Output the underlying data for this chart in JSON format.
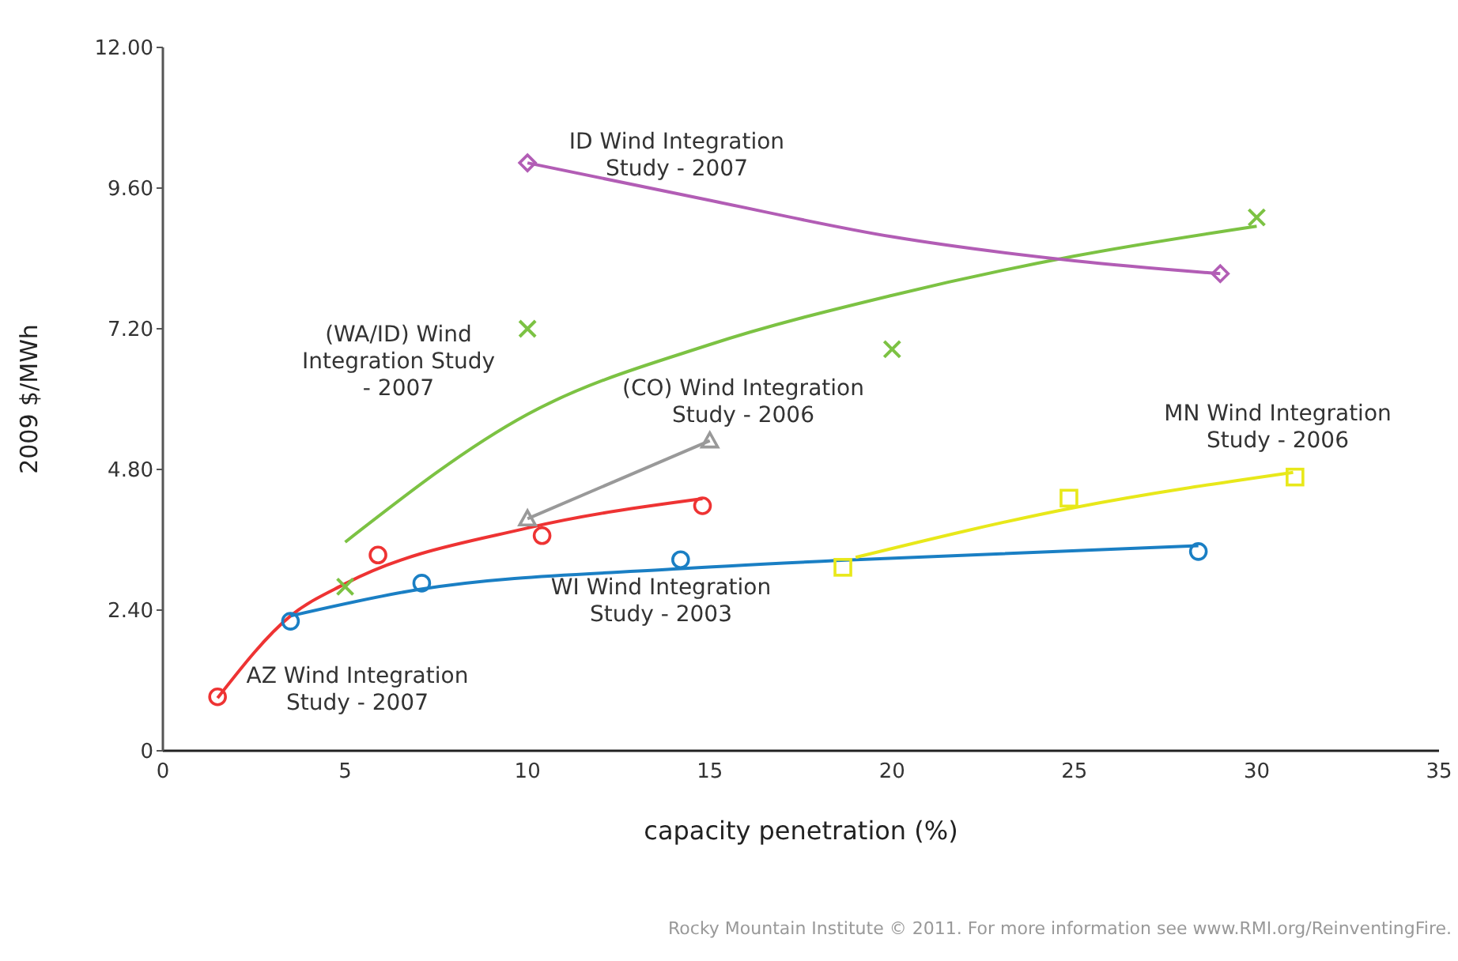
{
  "chart_data": {
    "type": "scatter",
    "xlabel": "capacity penetration (%)",
    "ylabel": "2009 $/MWh",
    "xlim": [
      0,
      35
    ],
    "xticks": [
      0,
      5,
      10,
      15,
      20,
      25,
      30,
      35
    ],
    "ylim": [
      0,
      12
    ],
    "yticks": [
      0,
      {
        "value": 2.4,
        "label": "2.40"
      },
      {
        "value": 4.8,
        "label": "4.80"
      },
      {
        "value": 7.2,
        "label": "7.20"
      },
      {
        "value": 9.6,
        "label": "9.60"
      },
      {
        "value": 12,
        "label": "12.00"
      }
    ],
    "grid": false,
    "legend": false,
    "annotations": [
      "Rocky Mountain Institute © 2011. For more information see www.RMI.org/ReinventingFire."
    ],
    "series": [
      {
        "name": "AZ Wind Integration Study - 2007",
        "color": "#ee3333",
        "marker": "circle",
        "x": [
          1.5,
          5.9,
          10.4,
          14.8
        ],
        "values": [
          0.92,
          3.34,
          3.67,
          4.18
        ]
      },
      {
        "type": "line",
        "color": "#ee3333",
        "marker": "none",
        "x": [
          1.5,
          3.5,
          5,
          10,
          14.8
        ],
        "values": [
          0.9,
          2.3,
          2.85,
          3.8,
          4.3
        ]
      },
      {
        "name": "WI Wind Integration Study - 2003",
        "color": "#1a7fc4",
        "marker": "circle",
        "x": [
          3.5,
          7.1,
          14.2,
          28.4
        ],
        "values": [
          2.21,
          2.86,
          3.26,
          3.4
        ]
      },
      {
        "type": "line",
        "color": "#1a7fc4",
        "marker": "none",
        "x": [
          3.5,
          7,
          14,
          18.6,
          28.4
        ],
        "values": [
          2.3,
          2.75,
          3.1,
          3.25,
          3.5
        ]
      },
      {
        "name": "(WA/ID) Wind Integration Study - 2007",
        "color": "#7cc243",
        "marker": "cross",
        "x": [
          5,
          10,
          20,
          30
        ],
        "values": [
          2.8,
          7.2,
          6.85,
          9.1
        ]
      },
      {
        "type": "line",
        "color": "#7cc243",
        "marker": "none",
        "x": [
          5,
          10,
          15,
          20,
          25,
          30
        ],
        "values": [
          3.56,
          5.74,
          6.93,
          7.77,
          8.44,
          8.95
        ]
      },
      {
        "type": "line",
        "name": "(CO) Wind Integration Study - 2006",
        "color": "#999999",
        "marker": "triangle",
        "x": [
          10,
          15
        ],
        "values": [
          3.96,
          5.29
        ]
      },
      {
        "name": "ID Wind Integration Study - 2007",
        "color": "#b25db5",
        "marker": "diamond",
        "x": [
          10,
          29
        ],
        "values": [
          10.03,
          8.14
        ]
      },
      {
        "type": "line",
        "color": "#b25db5",
        "marker": "none",
        "x": [
          10,
          15,
          20,
          25,
          29
        ],
        "values": [
          10.03,
          9.39,
          8.77,
          8.36,
          8.14
        ]
      },
      {
        "name": "MN Wind Integration Study - 2006",
        "color": "#e8e81a",
        "marker": "square",
        "x": [
          18.65,
          24.85,
          31.05
        ],
        "values": [
          3.13,
          4.31,
          4.67
        ]
      },
      {
        "type": "line",
        "color": "#e8e81a",
        "marker": "none",
        "x": [
          19,
          25,
          31
        ],
        "values": [
          3.3,
          4.15,
          4.75
        ]
      }
    ]
  }
}
